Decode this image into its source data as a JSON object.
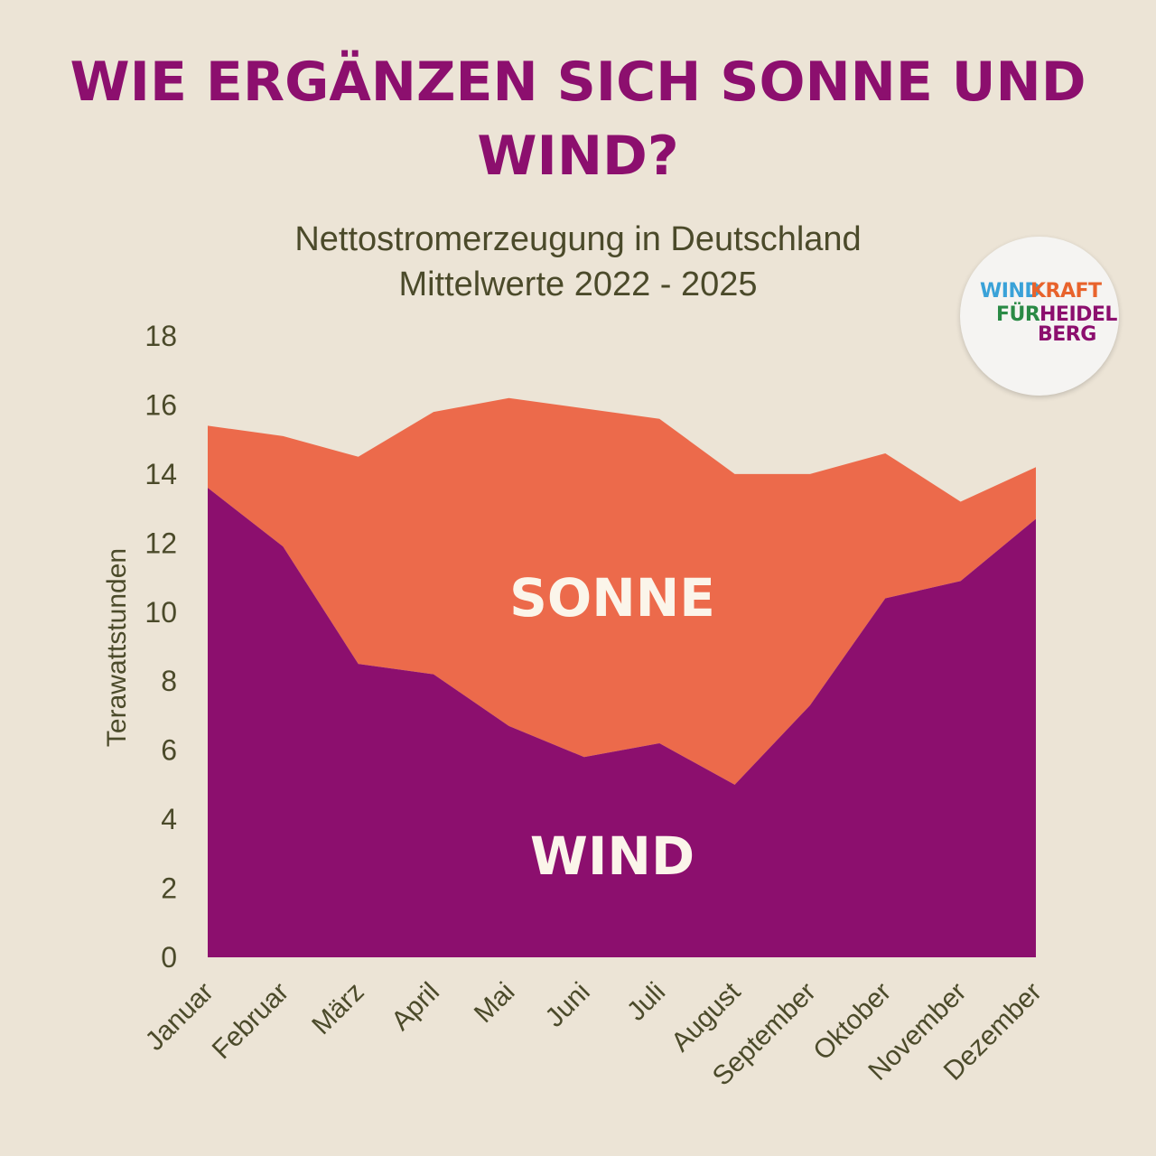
{
  "title": "WIE ERGÄNZEN SICH SONNE UND WIND?",
  "subtitle_line1": "Nettostromerzeugung in Deutschland",
  "subtitle_line2": "Mittelwerte 2022 - 2025",
  "logo": {
    "wind": "WIND",
    "kraft": "KRAFT",
    "fuer": "FÜR",
    "heidel": "HEIDEL",
    "berg": "BERG"
  },
  "colors": {
    "background": "#ece4d6",
    "title": "#8c0f6e",
    "wind": "#8c0f6e",
    "sonne": "#ec6a4b",
    "label_text": "#fbf5ea",
    "axis_text": "#4b4a2a"
  },
  "chart_data": {
    "type": "area",
    "stacked": true,
    "ylabel": "Terawattstunden",
    "xlabel": "",
    "ylim": [
      0,
      18
    ],
    "yticks": [
      0,
      2,
      4,
      6,
      8,
      10,
      12,
      14,
      16,
      18
    ],
    "grid": false,
    "categories": [
      "Januar",
      "Februar",
      "März",
      "April",
      "Mai",
      "Juni",
      "Juli",
      "August",
      "September",
      "Oktober",
      "November",
      "Dezember"
    ],
    "series": [
      {
        "name": "WIND",
        "values": [
          13.6,
          11.9,
          8.5,
          8.2,
          6.7,
          5.8,
          6.2,
          5.0,
          7.3,
          10.4,
          10.9,
          12.7
        ]
      },
      {
        "name": "SONNE",
        "values": [
          1.8,
          3.2,
          6.0,
          7.6,
          9.5,
          10.1,
          9.4,
          9.0,
          6.7,
          4.2,
          2.3,
          1.5
        ]
      }
    ]
  }
}
